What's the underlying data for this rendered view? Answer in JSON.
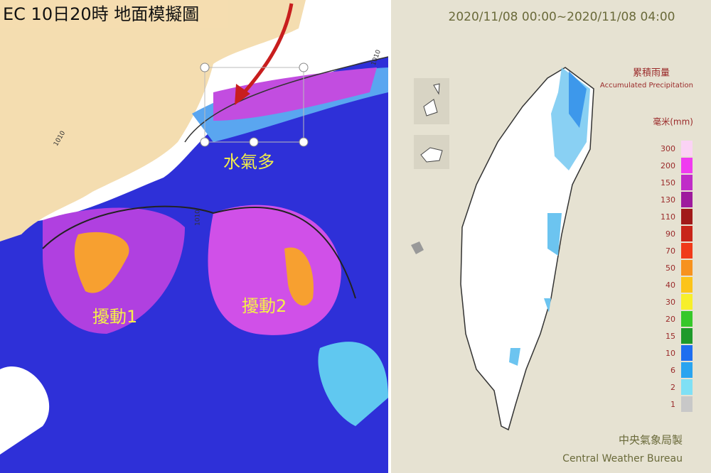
{
  "left_map": {
    "title": "EC 10日20時 地面模擬圖",
    "annotations": [
      "水氣多",
      "擾動1",
      "擾動2"
    ],
    "isobar_labels": [
      "1010",
      "1010",
      "1010"
    ]
  },
  "right_map": {
    "time_range": "2020/11/08 00:00~2020/11/08 04:00",
    "legend_title": "累積雨量",
    "legend_subtitle": "Accumulated Precipitation",
    "unit": "毫米(mm)",
    "legend": [
      {
        "label": 300,
        "color": "#fbd3f5"
      },
      {
        "label": 200,
        "color": "#f03bf0"
      },
      {
        "label": 150,
        "color": "#c02cc8"
      },
      {
        "label": 130,
        "color": "#9e1a9e"
      },
      {
        "label": 110,
        "color": "#a11a1a"
      },
      {
        "label": 90,
        "color": "#c8251a"
      },
      {
        "label": 70,
        "color": "#f03a1a"
      },
      {
        "label": 50,
        "color": "#f7921e"
      },
      {
        "label": 40,
        "color": "#fcc419"
      },
      {
        "label": 30,
        "color": "#f7ef2a"
      },
      {
        "label": 20,
        "color": "#36c82a"
      },
      {
        "label": 15,
        "color": "#1e9a2a"
      },
      {
        "label": 10,
        "color": "#1e6ef0"
      },
      {
        "label": 6,
        "color": "#2aa4f0"
      },
      {
        "label": 2,
        "color": "#7fe0f5"
      },
      {
        "label": 1,
        "color": "#c8c8c8"
      }
    ],
    "credit_zh": "中央氣象局製",
    "credit_en": "Central Weather Bureau"
  }
}
